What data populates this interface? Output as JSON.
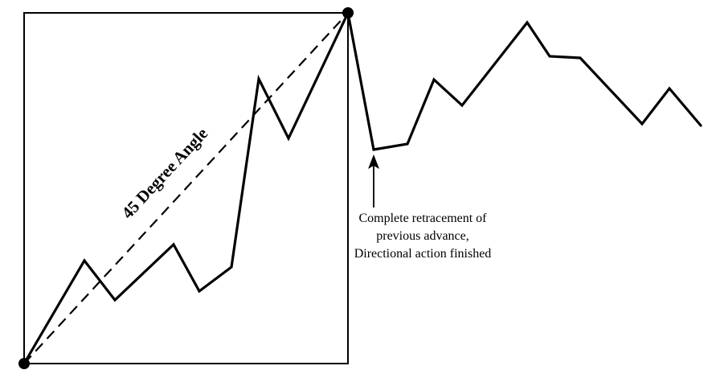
{
  "diagram": {
    "angle_label": "45 Degree Angle",
    "annotation": {
      "line1": "Complete retracement of",
      "line2": "previous advance,",
      "line3": "Directional action finished"
    },
    "colors": {
      "ink": "#000000",
      "background": "#ffffff"
    }
  }
}
